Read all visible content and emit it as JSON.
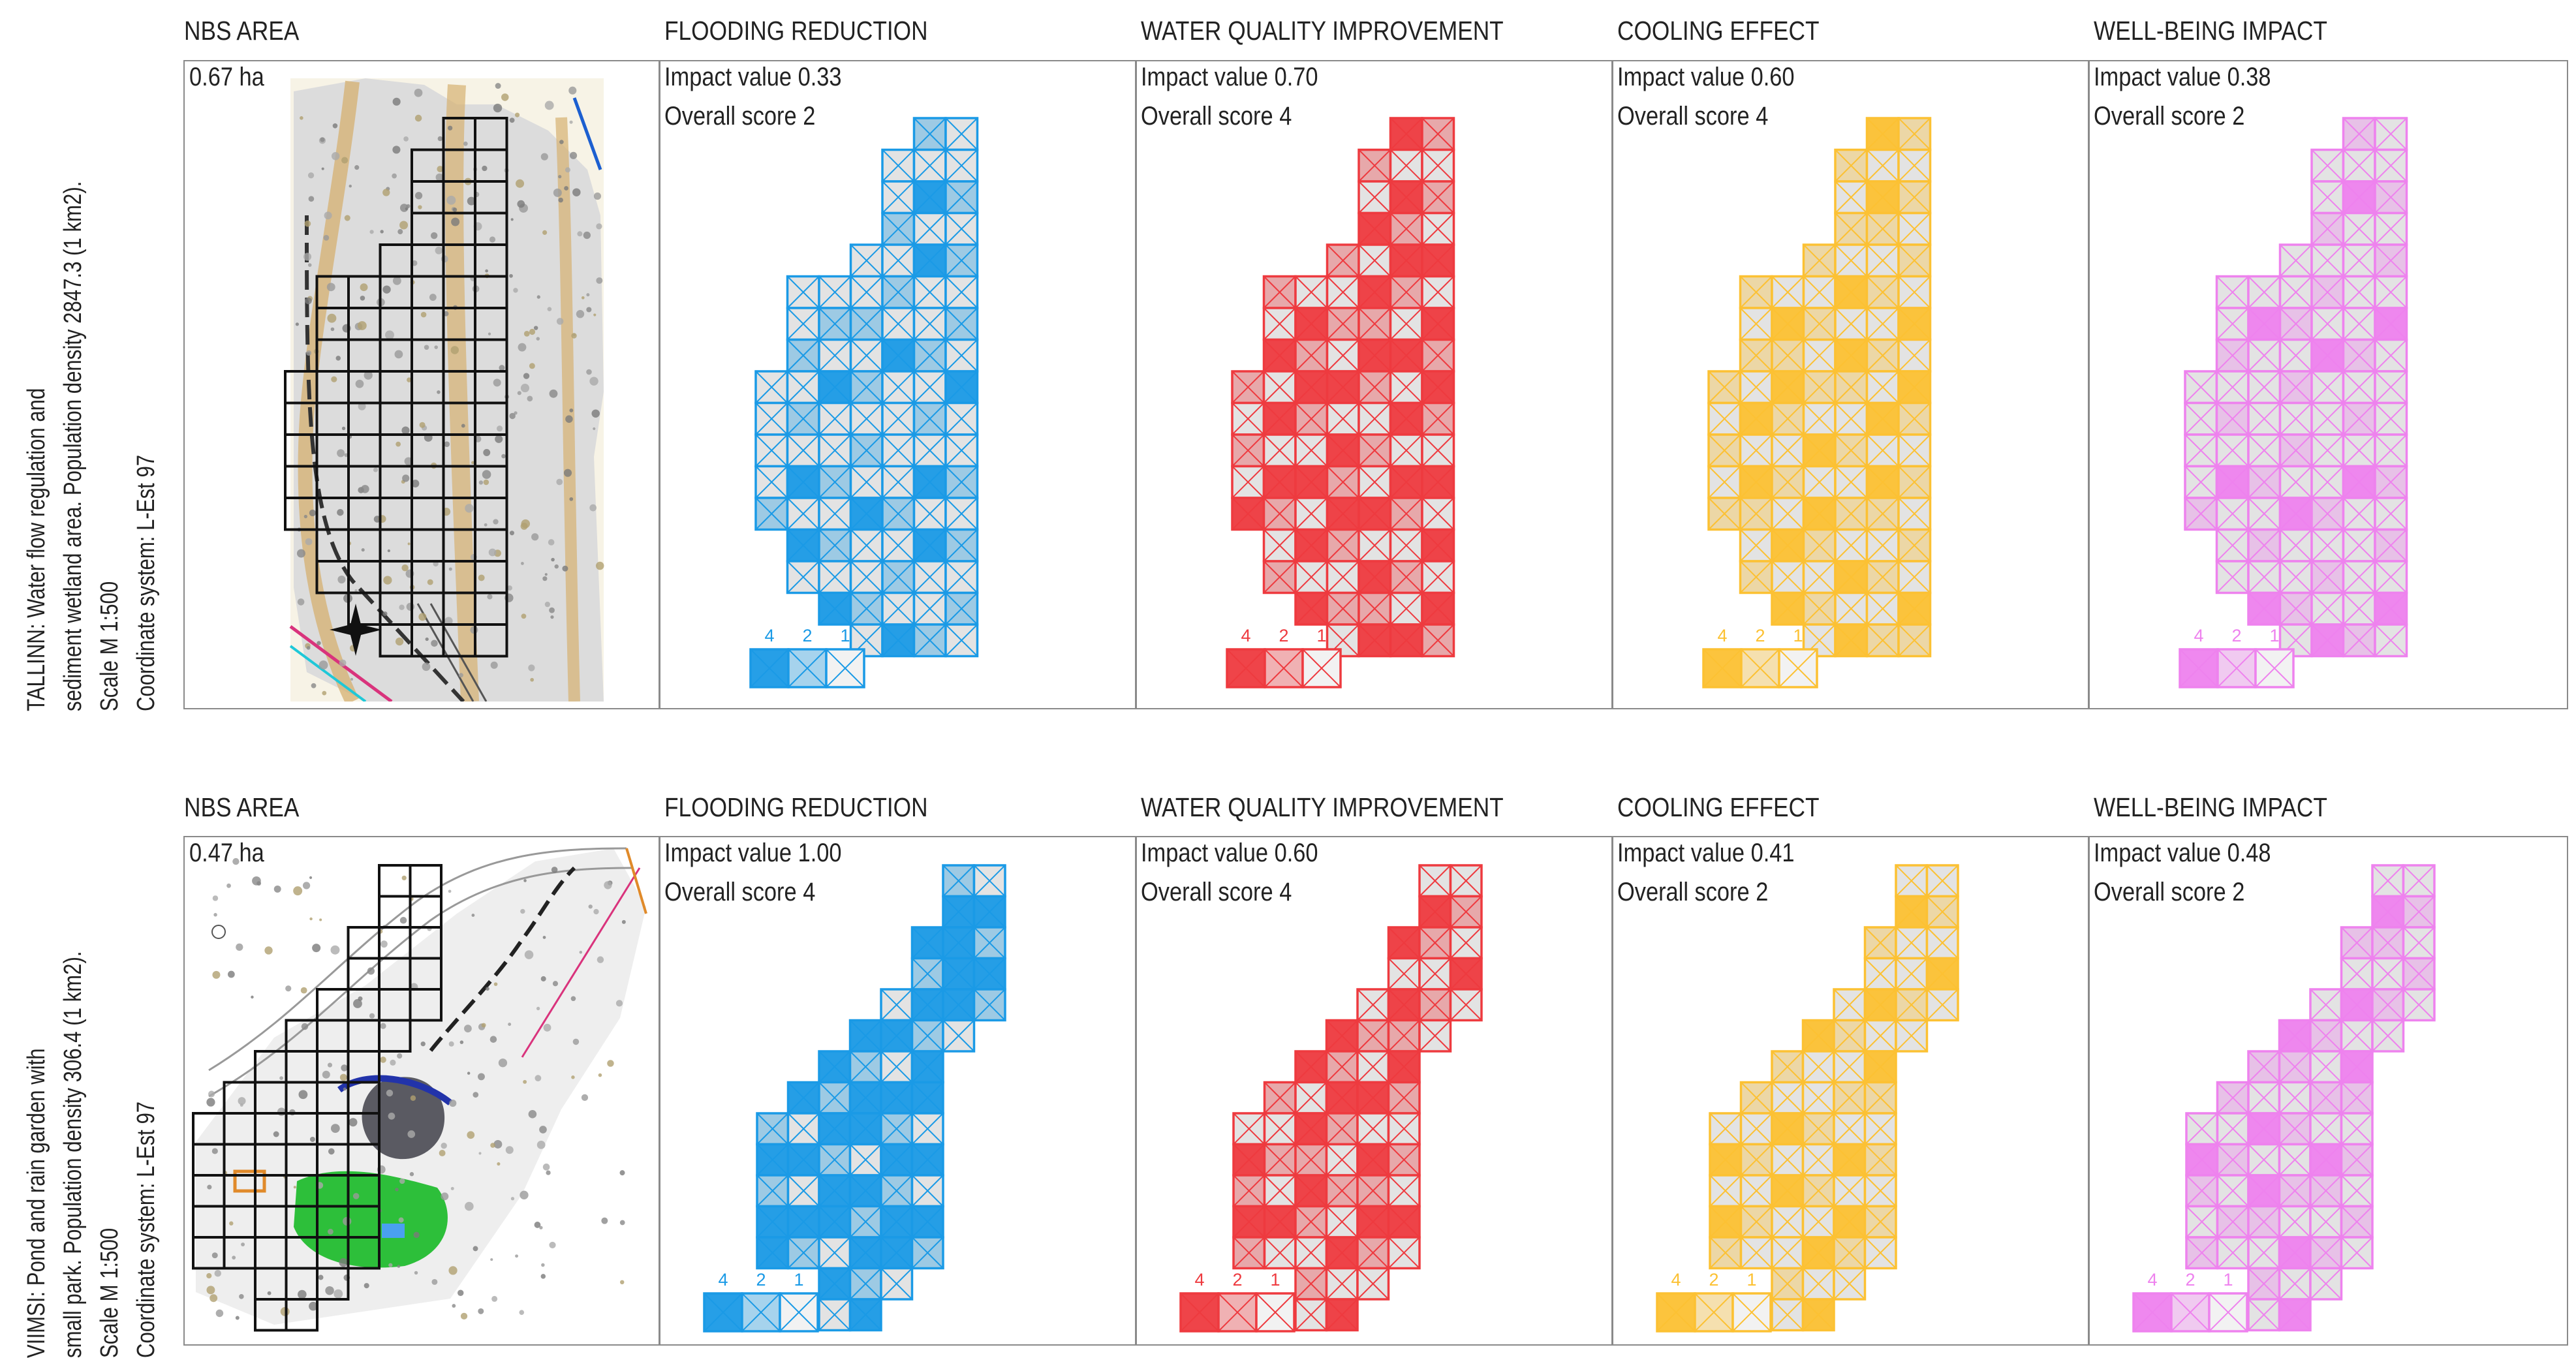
{
  "colors": {
    "flooding": "#1a9ae6",
    "water": "#ee3a3f",
    "cooling": "#fcc133",
    "wellbeing": "#ee82ee",
    "neutral": "#e3e3e3"
  },
  "legend_labels": [
    "4",
    "2",
    "1"
  ],
  "rows": [
    {
      "side": {
        "line1": "TALLINN: Water flow regulation and",
        "line2": "sediment wetland area. Population density 2847.3 (1 km2).",
        "line3": "Scale M 1:500",
        "line4": "Coordinate system: L-Est 97"
      },
      "area": {
        "header": "NBS AREA",
        "size": "0.67 ha"
      },
      "panels": [
        {
          "header": "FLOODING REDUCTION",
          "impact": "Impact value 0.33",
          "score": "Overall score 2"
        },
        {
          "header": "WATER QUALITY IMPROVEMENT",
          "impact": "Impact value 0.70",
          "score": "Overall score 4"
        },
        {
          "header": "COOLING EFFECT",
          "impact": "Impact value 0.60",
          "score": "Overall score 4"
        },
        {
          "header": "WELL-BEING IMPACT",
          "impact": "Impact value 0.38",
          "score": "Overall score 2"
        }
      ]
    },
    {
      "side": {
        "line1": "VIIMSI: Pond and rain garden with",
        "line2": "small park. Population density 306.4 (1 km2).",
        "line3": "Scale M 1:500",
        "line4": "Coordinate system: L-Est 97"
      },
      "area": {
        "header": "NBS AREA",
        "size": "0.47 ha"
      },
      "panels": [
        {
          "header": "FLOODING REDUCTION",
          "impact": "Impact value 1.00",
          "score": "Overall score 4"
        },
        {
          "header": "WATER QUALITY IMPROVEMENT",
          "impact": "Impact value 0.60",
          "score": "Overall score 4"
        },
        {
          "header": "COOLING EFFECT",
          "impact": "Impact value 0.41",
          "score": "Overall score 2"
        },
        {
          "header": "WELL-BEING IMPACT",
          "impact": "Impact value 0.48",
          "score": "Overall score 2"
        }
      ]
    }
  ]
}
